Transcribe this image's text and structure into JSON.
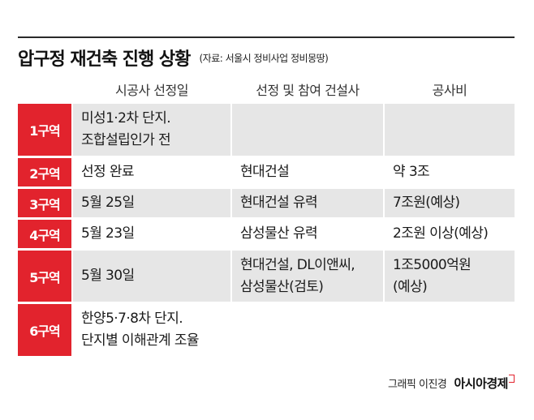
{
  "title": "압구정 재건축 진행 상황",
  "source": "(자료: 서울시 정비사업 정비몽땅)",
  "headers": [
    "시공사 선정일",
    "선정 및 참여 건설사",
    "공사비"
  ],
  "rows": [
    {
      "zone": "1구역",
      "date": "미성1·2차 단지.\n조합설립인가 전",
      "builder": "",
      "cost": ""
    },
    {
      "zone": "2구역",
      "date": "선정 완료",
      "builder": "현대건설",
      "cost": "약 3조"
    },
    {
      "zone": "3구역",
      "date": "5월 25일",
      "builder": "현대건설 유력",
      "cost": "7조원(예상)"
    },
    {
      "zone": "4구역",
      "date": "5월 23일",
      "builder": "삼성물산 유력",
      "cost": "2조원 이상(예상)"
    },
    {
      "zone": "5구역",
      "date": "5월 30일",
      "builder": "현대건설, DL이앤씨,\n삼성물산(검토)",
      "cost": "1조5000억원\n(예상)"
    },
    {
      "zone": "6구역",
      "date": "한양5·7·8차 단지.\n단지별 이해관계 조율",
      "builder": "",
      "cost": ""
    }
  ],
  "credit": "그래픽 이진경",
  "brand": "아시아경제",
  "colors": {
    "accent": "#e2232d",
    "gray_cell": "#e6e6e6"
  }
}
